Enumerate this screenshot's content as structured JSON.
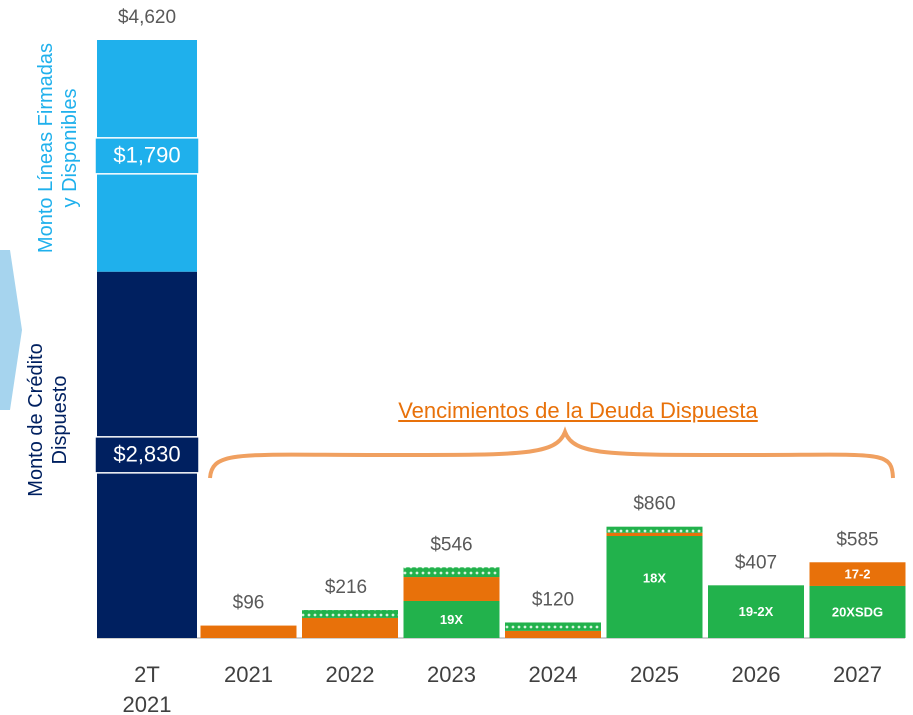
{
  "chart_data": {
    "type": "stacked_bar",
    "categories": [
      "2T\n2021",
      "2021",
      "2022",
      "2023",
      "2024",
      "2025",
      "2026",
      "2027"
    ],
    "ylim": [
      0,
      4620
    ],
    "totals": [
      4620,
      96,
      216,
      546,
      120,
      860,
      407,
      585
    ],
    "total_labels": [
      "$4,620",
      "$96",
      "$216",
      "$546",
      "$120",
      "$860",
      "$407",
      "$585"
    ],
    "annotation": "Vencimientos de la Deuda Dispuesta",
    "series": [
      {
        "name": "Monto de Crédito\nDispuesto",
        "color": "#002060",
        "values": [
          2830,
          null,
          null,
          null,
          null,
          null,
          null,
          null
        ],
        "value_labels": [
          "$2,830",
          null,
          null,
          null,
          null,
          null,
          null,
          null
        ]
      },
      {
        "name": "Monto Líneas Firmadas\ny Disponibles",
        "color": "#1fb0ec",
        "values": [
          1790,
          null,
          null,
          null,
          null,
          null,
          null,
          null
        ],
        "value_labels": [
          "$1,790",
          null,
          null,
          null,
          null,
          null,
          null,
          null
        ]
      },
      {
        "color": "#22b24c",
        "values": [
          null,
          null,
          null,
          286,
          null,
          788,
          407,
          402
        ],
        "labels": [
          null,
          null,
          null,
          "19X",
          null,
          "18X",
          "19-2X",
          "20XSDG"
        ]
      },
      {
        "color": "#e8710a",
        "values": [
          null,
          96,
          155,
          185,
          55,
          25,
          null,
          183
        ],
        "labels": [
          null,
          null,
          null,
          null,
          null,
          null,
          null,
          "17-2"
        ]
      },
      {
        "color": "url(#dots)",
        "values": [
          null,
          null,
          61,
          75,
          65,
          47,
          null,
          null
        ]
      }
    ]
  }
}
